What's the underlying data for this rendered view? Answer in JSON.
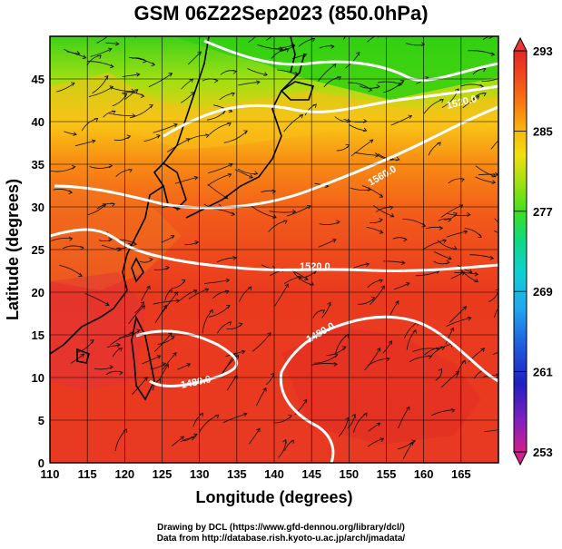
{
  "title": "GSM 06Z22Sep2023 (850.0hPa)",
  "x_axis": {
    "label": "Longitude (degrees)",
    "range": [
      110,
      170
    ],
    "ticks": [
      "110",
      "115",
      "120",
      "125",
      "130",
      "135",
      "140",
      "145",
      "150",
      "155",
      "160",
      "165"
    ]
  },
  "y_axis": {
    "label": "Latitude  (degrees)",
    "range": [
      0,
      50
    ],
    "ticks": [
      "0",
      "5",
      "10",
      "15",
      "20",
      "25",
      "30",
      "35",
      "40",
      "45"
    ]
  },
  "colorbar": {
    "range": [
      253,
      293
    ],
    "ticks": [
      "293",
      "285",
      "277",
      "269",
      "261",
      "253"
    ],
    "colors": [
      "#d0208a",
      "#8020c0",
      "#2020c0",
      "#2060e0",
      "#20a8f0",
      "#10d0d0",
      "#10d880",
      "#40e020",
      "#a0e010",
      "#f0e010",
      "#f8b010",
      "#f87010",
      "#f04020",
      "#e02828"
    ]
  },
  "contour_labels": [
    "1520.0",
    "1560.0",
    "1520.0",
    "1480.0",
    "1480.0"
  ],
  "credits": {
    "line1": "Drawing by DCL (https://www.gfd-dennou.org/library/dcl/)",
    "line2": "Data from http://database.rish.kyoto-u.ac.jp/arch/jmadata/"
  }
}
